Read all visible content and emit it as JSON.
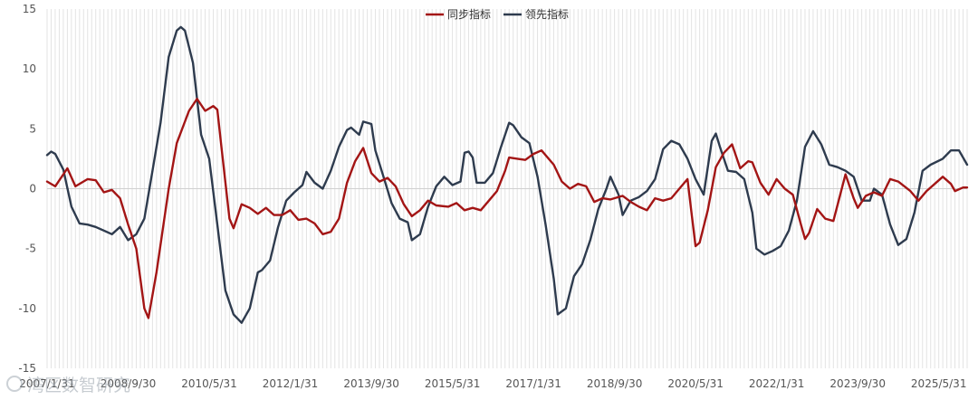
{
  "chart_data": {
    "type": "line",
    "title": "",
    "xlabel": "",
    "ylabel": "",
    "ylim": [
      -15,
      15
    ],
    "yticks": [
      15,
      10,
      5,
      0,
      -5,
      -10,
      -15
    ],
    "xlim": [
      "2007-01",
      "2025-12"
    ],
    "xticks": [
      "2007/1/31",
      "2008/9/30",
      "2010/5/31",
      "2012/1/31",
      "2013/9/30",
      "2015/5/31",
      "2017/1/31",
      "2018/9/30",
      "2020/5/31",
      "2022/1/31",
      "2023/9/30",
      "2025/5/31"
    ],
    "grid": "vertical-monthly",
    "legend": "top-center",
    "series": [
      {
        "name": "同步指标",
        "color": "#a31515",
        "points": [
          [
            "2007-01",
            0.6
          ],
          [
            "2007-03",
            0.2
          ],
          [
            "2007-06",
            1.7
          ],
          [
            "2007-08",
            0.2
          ],
          [
            "2007-11",
            0.8
          ],
          [
            "2008-01",
            0.7
          ],
          [
            "2008-03",
            -0.3
          ],
          [
            "2008-05",
            -0.1
          ],
          [
            "2008-07",
            -0.8
          ],
          [
            "2008-09",
            -3.0
          ],
          [
            "2008-11",
            -5.0
          ],
          [
            "2009-01",
            -10.0
          ],
          [
            "2009-02",
            -10.8
          ],
          [
            "2009-04",
            -7.0
          ],
          [
            "2009-07",
            0.0
          ],
          [
            "2009-09",
            3.8
          ],
          [
            "2009-12",
            6.5
          ],
          [
            "2010-02",
            7.5
          ],
          [
            "2010-04",
            6.5
          ],
          [
            "2010-06",
            6.9
          ],
          [
            "2010-07",
            6.6
          ],
          [
            "2010-08",
            3.5
          ],
          [
            "2010-10",
            -2.5
          ],
          [
            "2010-11",
            -3.3
          ],
          [
            "2011-01",
            -1.3
          ],
          [
            "2011-03",
            -1.6
          ],
          [
            "2011-05",
            -2.1
          ],
          [
            "2011-07",
            -1.6
          ],
          [
            "2011-09",
            -2.2
          ],
          [
            "2011-11",
            -2.2
          ],
          [
            "2012-01",
            -1.8
          ],
          [
            "2012-03",
            -2.6
          ],
          [
            "2012-05",
            -2.5
          ],
          [
            "2012-07",
            -2.9
          ],
          [
            "2012-09",
            -3.8
          ],
          [
            "2012-11",
            -3.6
          ],
          [
            "2013-01",
            -2.5
          ],
          [
            "2013-03",
            0.5
          ],
          [
            "2013-05",
            2.3
          ],
          [
            "2013-07",
            3.4
          ],
          [
            "2013-09",
            1.3
          ],
          [
            "2013-11",
            0.6
          ],
          [
            "2014-01",
            0.9
          ],
          [
            "2014-03",
            0.2
          ],
          [
            "2014-05",
            -1.3
          ],
          [
            "2014-07",
            -2.3
          ],
          [
            "2014-09",
            -1.8
          ],
          [
            "2014-11",
            -1.0
          ],
          [
            "2015-01",
            -1.4
          ],
          [
            "2015-04",
            -1.5
          ],
          [
            "2015-06",
            -1.2
          ],
          [
            "2015-08",
            -1.8
          ],
          [
            "2015-10",
            -1.6
          ],
          [
            "2015-12",
            -1.8
          ],
          [
            "2016-02",
            -1.0
          ],
          [
            "2016-04",
            -0.2
          ],
          [
            "2016-06",
            1.5
          ],
          [
            "2016-07",
            2.6
          ],
          [
            "2016-09",
            2.5
          ],
          [
            "2016-11",
            2.4
          ],
          [
            "2017-01",
            2.9
          ],
          [
            "2017-03",
            3.2
          ],
          [
            "2017-06",
            2.0
          ],
          [
            "2017-08",
            0.6
          ],
          [
            "2017-10",
            0.0
          ],
          [
            "2017-12",
            0.4
          ],
          [
            "2018-02",
            0.2
          ],
          [
            "2018-04",
            -1.1
          ],
          [
            "2018-06",
            -0.8
          ],
          [
            "2018-08",
            -0.9
          ],
          [
            "2018-11",
            -0.6
          ],
          [
            "2019-01",
            -1.1
          ],
          [
            "2019-03",
            -1.5
          ],
          [
            "2019-05",
            -1.8
          ],
          [
            "2019-07",
            -0.8
          ],
          [
            "2019-09",
            -1.0
          ],
          [
            "2019-11",
            -0.8
          ],
          [
            "2020-01",
            0.0
          ],
          [
            "2020-03",
            0.8
          ],
          [
            "2020-04",
            -2.0
          ],
          [
            "2020-05",
            -4.8
          ],
          [
            "2020-06",
            -4.5
          ],
          [
            "2020-08",
            -1.8
          ],
          [
            "2020-10",
            1.8
          ],
          [
            "2020-12",
            3.0
          ],
          [
            "2021-02",
            3.7
          ],
          [
            "2021-04",
            1.7
          ],
          [
            "2021-06",
            2.3
          ],
          [
            "2021-07",
            2.2
          ],
          [
            "2021-09",
            0.5
          ],
          [
            "2021-11",
            -0.5
          ],
          [
            "2022-01",
            0.8
          ],
          [
            "2022-03",
            0.0
          ],
          [
            "2022-05",
            -0.5
          ],
          [
            "2022-07",
            -3.0
          ],
          [
            "2022-08",
            -4.2
          ],
          [
            "2022-09",
            -3.7
          ],
          [
            "2022-11",
            -1.7
          ],
          [
            "2023-01",
            -2.5
          ],
          [
            "2023-03",
            -2.7
          ],
          [
            "2023-06",
            1.2
          ],
          [
            "2023-08",
            -0.8
          ],
          [
            "2023-09",
            -1.6
          ],
          [
            "2023-11",
            -0.6
          ],
          [
            "2024-01",
            -0.3
          ],
          [
            "2024-03",
            -0.6
          ],
          [
            "2024-05",
            0.8
          ],
          [
            "2024-07",
            0.6
          ],
          [
            "2024-10",
            -0.2
          ],
          [
            "2024-12",
            -1.0
          ],
          [
            "2025-02",
            -0.2
          ],
          [
            "2025-04",
            0.4
          ],
          [
            "2025-06",
            1.0
          ],
          [
            "2025-08",
            0.4
          ],
          [
            "2025-09",
            -0.2
          ],
          [
            "2025-11",
            0.1
          ],
          [
            "2025-12",
            0.1
          ]
        ]
      },
      {
        "name": "领先指标",
        "color": "#2e3b4e",
        "points": [
          [
            "2007-01",
            2.8
          ],
          [
            "2007-02",
            3.1
          ],
          [
            "2007-03",
            2.9
          ],
          [
            "2007-05",
            1.6
          ],
          [
            "2007-07",
            -1.5
          ],
          [
            "2007-09",
            -2.9
          ],
          [
            "2007-11",
            -3.0
          ],
          [
            "2008-01",
            -3.2
          ],
          [
            "2008-03",
            -3.5
          ],
          [
            "2008-05",
            -3.8
          ],
          [
            "2008-07",
            -3.2
          ],
          [
            "2008-09",
            -4.3
          ],
          [
            "2008-11",
            -3.8
          ],
          [
            "2009-01",
            -2.5
          ],
          [
            "2009-03",
            1.5
          ],
          [
            "2009-05",
            5.5
          ],
          [
            "2009-07",
            11.0
          ],
          [
            "2009-09",
            13.2
          ],
          [
            "2009-10",
            13.5
          ],
          [
            "2009-11",
            13.2
          ],
          [
            "2010-01",
            10.5
          ],
          [
            "2010-03",
            4.5
          ],
          [
            "2010-05",
            2.5
          ],
          [
            "2010-07",
            -3.0
          ],
          [
            "2010-09",
            -8.5
          ],
          [
            "2010-11",
            -10.5
          ],
          [
            "2011-01",
            -11.2
          ],
          [
            "2011-03",
            -10.0
          ],
          [
            "2011-05",
            -7.0
          ],
          [
            "2011-06",
            -6.8
          ],
          [
            "2011-08",
            -6.0
          ],
          [
            "2011-10",
            -3.2
          ],
          [
            "2011-12",
            -1.0
          ],
          [
            "2012-02",
            -0.3
          ],
          [
            "2012-04",
            0.3
          ],
          [
            "2012-05",
            1.4
          ],
          [
            "2012-07",
            0.5
          ],
          [
            "2012-09",
            0.0
          ],
          [
            "2012-11",
            1.5
          ],
          [
            "2013-01",
            3.5
          ],
          [
            "2013-03",
            4.9
          ],
          [
            "2013-04",
            5.1
          ],
          [
            "2013-06",
            4.5
          ],
          [
            "2013-07",
            5.6
          ],
          [
            "2013-09",
            5.4
          ],
          [
            "2013-10",
            3.2
          ],
          [
            "2013-12",
            1.0
          ],
          [
            "2014-02",
            -1.2
          ],
          [
            "2014-04",
            -2.5
          ],
          [
            "2014-06",
            -2.8
          ],
          [
            "2014-07",
            -4.3
          ],
          [
            "2014-09",
            -3.8
          ],
          [
            "2014-11",
            -1.5
          ],
          [
            "2015-01",
            0.2
          ],
          [
            "2015-03",
            1.0
          ],
          [
            "2015-05",
            0.3
          ],
          [
            "2015-07",
            0.6
          ],
          [
            "2015-08",
            3.0
          ],
          [
            "2015-09",
            3.1
          ],
          [
            "2015-10",
            2.6
          ],
          [
            "2015-11",
            0.5
          ],
          [
            "2016-01",
            0.5
          ],
          [
            "2016-03",
            1.3
          ],
          [
            "2016-05",
            3.5
          ],
          [
            "2016-07",
            5.5
          ],
          [
            "2016-08",
            5.3
          ],
          [
            "2016-10",
            4.3
          ],
          [
            "2016-12",
            3.8
          ],
          [
            "2017-02",
            1.0
          ],
          [
            "2017-04",
            -3.0
          ],
          [
            "2017-06",
            -7.5
          ],
          [
            "2017-07",
            -10.5
          ],
          [
            "2017-09",
            -10.0
          ],
          [
            "2017-11",
            -7.3
          ],
          [
            "2018-01",
            -6.3
          ],
          [
            "2018-03",
            -4.3
          ],
          [
            "2018-05",
            -1.7
          ],
          [
            "2018-07",
            0.0
          ],
          [
            "2018-08",
            1.0
          ],
          [
            "2018-10",
            -0.5
          ],
          [
            "2018-11",
            -2.2
          ],
          [
            "2019-01",
            -1.0
          ],
          [
            "2019-03",
            -0.7
          ],
          [
            "2019-05",
            -0.2
          ],
          [
            "2019-07",
            0.8
          ],
          [
            "2019-09",
            3.3
          ],
          [
            "2019-11",
            4.0
          ],
          [
            "2020-01",
            3.7
          ],
          [
            "2020-03",
            2.5
          ],
          [
            "2020-05",
            0.8
          ],
          [
            "2020-07",
            -0.5
          ],
          [
            "2020-09",
            4.0
          ],
          [
            "2020-10",
            4.6
          ],
          [
            "2020-11",
            3.5
          ],
          [
            "2021-01",
            1.5
          ],
          [
            "2021-03",
            1.4
          ],
          [
            "2021-05",
            0.8
          ],
          [
            "2021-07",
            -2.0
          ],
          [
            "2021-08",
            -5.0
          ],
          [
            "2021-10",
            -5.5
          ],
          [
            "2021-12",
            -5.2
          ],
          [
            "2022-02",
            -4.8
          ],
          [
            "2022-04",
            -3.5
          ],
          [
            "2022-06",
            -1.0
          ],
          [
            "2022-08",
            3.5
          ],
          [
            "2022-10",
            4.8
          ],
          [
            "2022-12",
            3.7
          ],
          [
            "2023-02",
            2.0
          ],
          [
            "2023-04",
            1.8
          ],
          [
            "2023-06",
            1.5
          ],
          [
            "2023-08",
            1.0
          ],
          [
            "2023-10",
            -1.0
          ],
          [
            "2023-12",
            -1.0
          ],
          [
            "2024-01",
            0.0
          ],
          [
            "2024-03",
            -0.5
          ],
          [
            "2024-05",
            -3.0
          ],
          [
            "2024-07",
            -4.7
          ],
          [
            "2024-09",
            -4.2
          ],
          [
            "2024-11",
            -2.0
          ],
          [
            "2025-01",
            1.5
          ],
          [
            "2025-03",
            2.0
          ],
          [
            "2025-06",
            2.5
          ],
          [
            "2025-08",
            3.2
          ],
          [
            "2025-10",
            3.2
          ],
          [
            "2025-12",
            2.0
          ]
        ]
      }
    ]
  },
  "watermark": "湾区数智研究"
}
